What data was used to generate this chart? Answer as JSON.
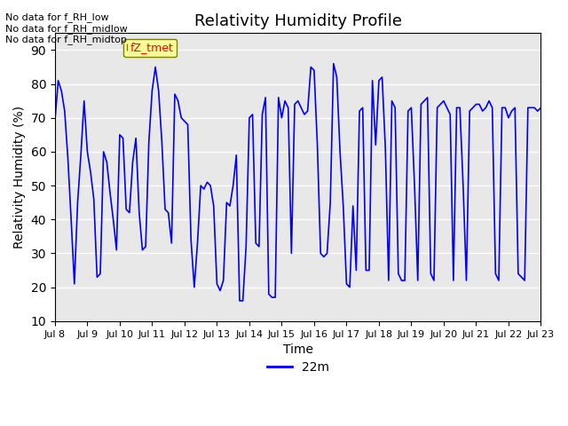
{
  "title": "Relativity Humidity Profile",
  "xlabel": "Time",
  "ylabel": "Relativity Humidity (%)",
  "ylim": [
    10,
    95
  ],
  "yticks": [
    10,
    20,
    30,
    40,
    50,
    60,
    70,
    80,
    90
  ],
  "line_color": "blue",
  "line_label": "22m",
  "legend_color": "blue",
  "bg_color": "#e8e8e8",
  "annotations": [
    "No data for f_RH_low",
    "No data for f_RH_midlow",
    "No data for f_RH_midtop"
  ],
  "legend_box_color": "#ffff99",
  "legend_text_color": "red",
  "legend_label": "fZ_tmet",
  "x_tick_labels": [
    "Jul 8",
    "Jul 9",
    "Jul 10",
    "Jul 11",
    "Jul 12",
    "Jul 13",
    "Jul 14",
    "Jul 15",
    "Jul 16",
    "Jul 17",
    "Jul 18",
    "Jul 19",
    "Jul 20",
    "Jul 21",
    "Jul 22",
    "Jul 23"
  ],
  "x_tick_positions": [
    0,
    1,
    2,
    3,
    4,
    5,
    6,
    7,
    8,
    9,
    10,
    11,
    12,
    13,
    14,
    15
  ],
  "data_x": [
    0.0,
    0.1,
    0.2,
    0.3,
    0.4,
    0.5,
    0.6,
    0.7,
    0.8,
    0.9,
    1.0,
    1.1,
    1.2,
    1.3,
    1.4,
    1.5,
    1.6,
    1.7,
    1.8,
    1.9,
    2.0,
    2.1,
    2.2,
    2.3,
    2.4,
    2.5,
    2.6,
    2.7,
    2.8,
    2.9,
    3.0,
    3.1,
    3.2,
    3.3,
    3.4,
    3.5,
    3.6,
    3.7,
    3.8,
    3.9,
    4.0,
    4.1,
    4.2,
    4.3,
    4.4,
    4.5,
    4.6,
    4.7,
    4.8,
    4.9,
    5.0,
    5.1,
    5.2,
    5.3,
    5.4,
    5.5,
    5.6,
    5.7,
    5.8,
    5.9,
    6.0,
    6.1,
    6.2,
    6.3,
    6.4,
    6.5,
    6.6,
    6.7,
    6.8,
    6.9,
    7.0,
    7.1,
    7.2,
    7.3,
    7.4,
    7.5,
    7.6,
    7.7,
    7.8,
    7.9,
    8.0,
    8.1,
    8.2,
    8.3,
    8.4,
    8.5,
    8.6,
    8.7,
    8.8,
    8.9,
    9.0,
    9.1,
    9.2,
    9.3,
    9.4,
    9.5,
    9.6,
    9.7,
    9.8,
    9.9,
    10.0,
    10.1,
    10.2,
    10.3,
    10.4,
    10.5,
    10.6,
    10.7,
    10.8,
    10.9,
    11.0,
    11.1,
    11.2,
    11.3,
    11.4,
    11.5,
    11.6,
    11.7,
    11.8,
    11.9,
    12.0,
    12.1,
    12.2,
    12.3,
    12.4,
    12.5,
    12.6,
    12.7,
    12.8,
    12.9,
    13.0,
    13.1,
    13.2,
    13.3,
    13.4,
    13.5,
    13.6,
    13.7,
    13.8,
    13.9,
    14.0,
    14.1,
    14.2,
    14.3,
    14.4,
    14.5,
    14.6,
    14.7,
    14.8,
    14.9,
    15.0
  ],
  "data_y": [
    69,
    81,
    78,
    72,
    58,
    40,
    21,
    45,
    59,
    75,
    60,
    54,
    46,
    23,
    24,
    60,
    57,
    48,
    40,
    31,
    65,
    64,
    43,
    42,
    57,
    64,
    42,
    31,
    32,
    63,
    78,
    85,
    78,
    63,
    43,
    42,
    33,
    77,
    75,
    70,
    69,
    68,
    34,
    20,
    33,
    50,
    49,
    51,
    50,
    44,
    21,
    19,
    22,
    45,
    44,
    50,
    59,
    16,
    16,
    32,
    70,
    71,
    33,
    32,
    71,
    76,
    18,
    17,
    17,
    76,
    70,
    75,
    73,
    30,
    74,
    75,
    73,
    71,
    72,
    85,
    84,
    62,
    30,
    29,
    30,
    45,
    86,
    82,
    60,
    44,
    21,
    20,
    44,
    25,
    72,
    73,
    25,
    25,
    81,
    62,
    81,
    82,
    61,
    22,
    75,
    73,
    24,
    22,
    22,
    72,
    73,
    50,
    22,
    74,
    75,
    76,
    24,
    22,
    73,
    74,
    75,
    73,
    71,
    22,
    73,
    73,
    50,
    22,
    72,
    73,
    74,
    74,
    72,
    73,
    75,
    73,
    24,
    22,
    73,
    73,
    70,
    72,
    73,
    24,
    23,
    22,
    73,
    73,
    73,
    72,
    73
  ]
}
